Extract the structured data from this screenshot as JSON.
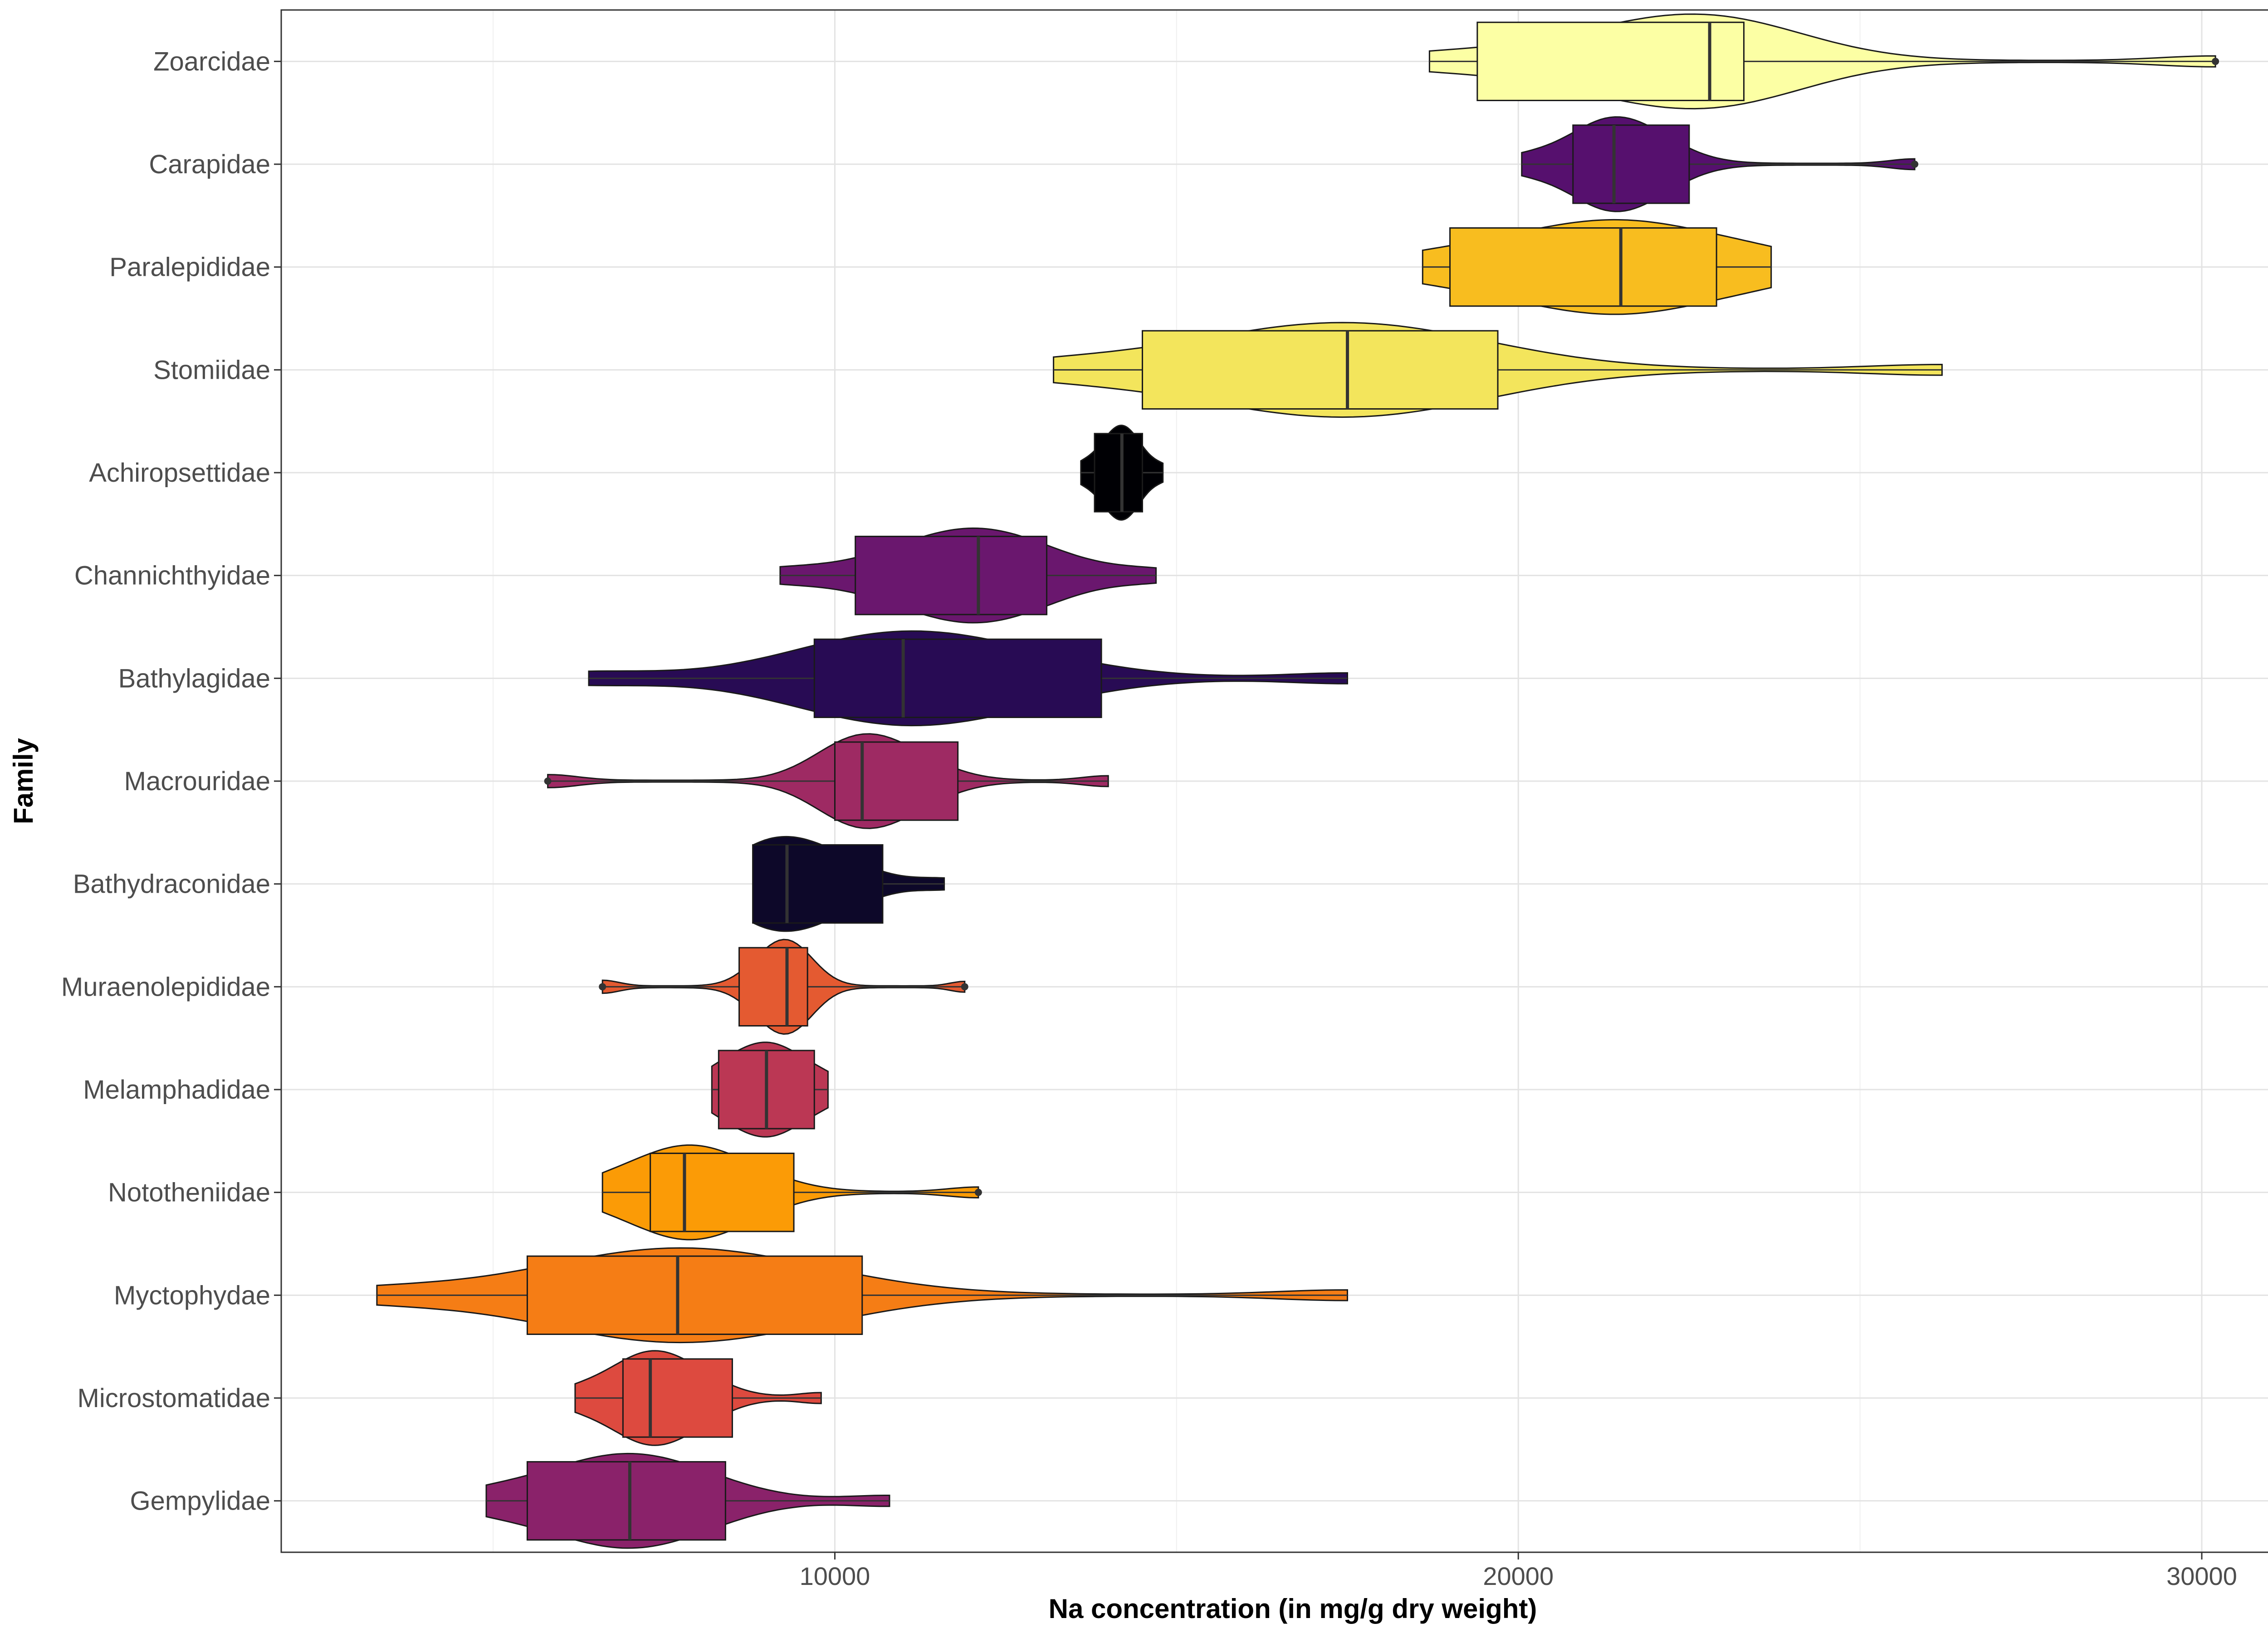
{
  "chart_data": {
    "type": "violin+box",
    "title": "",
    "xlabel": "Na concentration (in mg/g dry weight)",
    "ylabel": "Family",
    "xlim": [
      1900,
      31500
    ],
    "x_ticks": [
      10000,
      20000,
      30000
    ],
    "x_tick_labels": [
      "10000",
      "20000",
      "30000"
    ],
    "grid": true,
    "legend": "none",
    "categories": [
      "Zoarcidae",
      "Carapidae",
      "Paralepididae",
      "Stomiidae",
      "Achiropsettidae",
      "Channichthyidae",
      "Bathylagidae",
      "Macrouridae",
      "Bathydraconidae",
      "Muraenolepididae",
      "Melamphadidae",
      "Nototheniidae",
      "Myctophydae",
      "Microstomatidae",
      "Gempylidae"
    ],
    "series": [
      {
        "family": "Zoarcidae",
        "color": "#FCFFA4",
        "min": 18700,
        "q1": 19400,
        "median": 22800,
        "q3": 23300,
        "max": 30200,
        "outliers": [
          30200
        ]
      },
      {
        "family": "Carapidae",
        "color": "#56106E",
        "min": 20050,
        "q1": 20800,
        "median": 21400,
        "q3": 22500,
        "max": 25800,
        "outliers": [
          25800
        ]
      },
      {
        "family": "Paralepididae",
        "color": "#F8BD1F",
        "min": 18600,
        "q1": 19000,
        "median": 21500,
        "q3": 22900,
        "max": 23700,
        "outliers": []
      },
      {
        "family": "Stomiidae",
        "color": "#F3E55C",
        "min": 13200,
        "q1": 14500,
        "median": 17500,
        "q3": 19700,
        "max": 26200,
        "outliers": []
      },
      {
        "family": "Achiropsettidae",
        "color": "#000004",
        "min": 13600,
        "q1": 13800,
        "median": 14200,
        "q3": 14500,
        "max": 14800,
        "outliers": []
      },
      {
        "family": "Channichthyidae",
        "color": "#6A176E",
        "min": 9200,
        "q1": 10300,
        "median": 12100,
        "q3": 13100,
        "max": 14700,
        "outliers": []
      },
      {
        "family": "Bathylagidae",
        "color": "#280B54",
        "min": 6400,
        "q1": 9700,
        "median": 11000,
        "q3": 13900,
        "max": 17500,
        "outliers": []
      },
      {
        "family": "Macrouridae",
        "color": "#9E2A63",
        "min": 5800,
        "q1": 10000,
        "median": 10400,
        "q3": 11800,
        "max": 14000,
        "outliers": [
          5800
        ]
      },
      {
        "family": "Bathydraconidae",
        "color": "#0D0829",
        "min": 8800,
        "q1": 8800,
        "median": 9300,
        "q3": 10700,
        "max": 11600,
        "outliers": []
      },
      {
        "family": "Muraenolepididae",
        "color": "#E45A31",
        "min": 6600,
        "q1": 8600,
        "median": 9300,
        "q3": 9600,
        "max": 11900,
        "outliers": [
          6600,
          11900
        ]
      },
      {
        "family": "Melamphadidae",
        "color": "#BB3754",
        "min": 8200,
        "q1": 8300,
        "median": 9000,
        "q3": 9700,
        "max": 9900,
        "outliers": []
      },
      {
        "family": "Nototheniidae",
        "color": "#FB9B06",
        "min": 6600,
        "q1": 7300,
        "median": 7800,
        "q3": 9400,
        "max": 12100,
        "outliers": [
          12100
        ]
      },
      {
        "family": "Myctophydae",
        "color": "#F57D15",
        "min": 3300,
        "q1": 5500,
        "median": 7700,
        "q3": 10400,
        "max": 17500,
        "outliers": []
      },
      {
        "family": "Microstomatidae",
        "color": "#DD4A3F",
        "min": 6200,
        "q1": 6900,
        "median": 7300,
        "q3": 8500,
        "max": 9800,
        "outliers": []
      },
      {
        "family": "Gempylidae",
        "color": "#8A226A",
        "min": 4900,
        "q1": 5500,
        "median": 7000,
        "q3": 8400,
        "max": 10800,
        "outliers": []
      }
    ]
  }
}
